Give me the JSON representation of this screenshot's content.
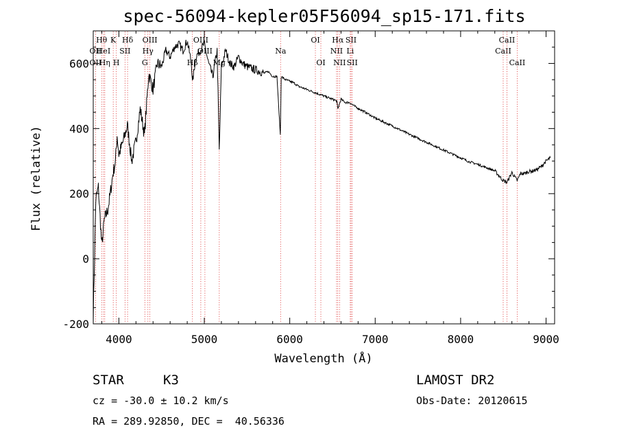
{
  "chart_data": {
    "type": "line",
    "title": "spec-56094-kepler05F56094_sp15-171.fits",
    "xlabel": "Wavelength (Å)",
    "ylabel": "Flux (relative)",
    "xlim": [
      3700,
      9100
    ],
    "ylim": [
      -200,
      700
    ],
    "xticks": [
      4000,
      5000,
      6000,
      7000,
      8000,
      9000
    ],
    "yticks": [
      -200,
      0,
      200,
      400,
      600
    ],
    "grid": false,
    "series": [
      {
        "x": [
          3700,
          3730,
          3760,
          3800,
          3830,
          3870,
          3900,
          3930,
          3960,
          3980,
          4000,
          4050,
          4100,
          4150,
          4200,
          4250,
          4300,
          4350,
          4400,
          4450,
          4500,
          4550,
          4600,
          4650,
          4700,
          4750,
          4800,
          4850,
          4861,
          4900,
          4950,
          5000,
          5050,
          5100,
          5150,
          5175,
          5200,
          5250,
          5300,
          5350,
          5400,
          5450,
          5500,
          5550,
          5600,
          5650,
          5700,
          5750,
          5800,
          5850,
          5890,
          5900,
          5950,
          6000,
          6050,
          6100,
          6150,
          6200,
          6250,
          6300,
          6350,
          6400,
          6450,
          6500,
          6550,
          6563,
          6600,
          6650,
          6700,
          6750,
          6800,
          6850,
          6900,
          6950,
          7000,
          7100,
          7200,
          7300,
          7400,
          7500,
          7600,
          7700,
          7800,
          7900,
          8000,
          8100,
          8200,
          8300,
          8400,
          8498,
          8542,
          8600,
          8662,
          8700,
          8750,
          8800,
          8850,
          8900,
          8950,
          9000,
          9050
        ],
        "y": [
          -180,
          180,
          220,
          40,
          120,
          150,
          200,
          260,
          300,
          380,
          320,
          360,
          410,
          300,
          360,
          460,
          380,
          570,
          520,
          600,
          590,
          640,
          620,
          650,
          660,
          640,
          670,
          600,
          540,
          620,
          640,
          660,
          600,
          560,
          640,
          330,
          590,
          640,
          600,
          590,
          620,
          600,
          590,
          585,
          580,
          575,
          570,
          575,
          560,
          560,
          380,
          560,
          550,
          545,
          540,
          530,
          525,
          520,
          515,
          510,
          505,
          500,
          495,
          490,
          485,
          460,
          490,
          480,
          480,
          470,
          462,
          455,
          448,
          440,
          432,
          420,
          408,
          395,
          382,
          370,
          358,
          346,
          334,
          322,
          310,
          298,
          290,
          280,
          270,
          240,
          235,
          265,
          240,
          262,
          262,
          268,
          270,
          275,
          285,
          300,
          310
        ]
      }
    ],
    "line_markers": [
      {
        "wavelength": 3727,
        "name": "OII",
        "row": 2
      },
      {
        "wavelength": 3727,
        "name": "OII",
        "row": 3
      },
      {
        "wavelength": 3798,
        "name": "Hθ",
        "row": 1
      },
      {
        "wavelength": 3820,
        "name": "HeI",
        "row": 2
      },
      {
        "wavelength": 3835,
        "name": "Hη",
        "row": 3
      },
      {
        "wavelength": 3934,
        "name": "K",
        "row": 1
      },
      {
        "wavelength": 3970,
        "name": "H",
        "row": 3
      },
      {
        "wavelength": 4072,
        "name": "SII",
        "row": 2
      },
      {
        "wavelength": 4102,
        "name": "Hδ",
        "row": 1
      },
      {
        "wavelength": 4304,
        "name": "G",
        "row": 3
      },
      {
        "wavelength": 4340,
        "name": "Hγ",
        "row": 2
      },
      {
        "wavelength": 4363,
        "name": "OIII",
        "row": 1
      },
      {
        "wavelength": 4861,
        "name": "Hβ",
        "row": 3
      },
      {
        "wavelength": 4959,
        "name": "OIII",
        "row": 1
      },
      {
        "wavelength": 5007,
        "name": "OIII",
        "row": 2
      },
      {
        "wavelength": 5175,
        "name": "Mg",
        "row": 3
      },
      {
        "wavelength": 5893,
        "name": "Na",
        "row": 2
      },
      {
        "wavelength": 6300,
        "name": "OI",
        "row": 1
      },
      {
        "wavelength": 6364,
        "name": "OI",
        "row": 3
      },
      {
        "wavelength": 6548,
        "name": "NII",
        "row": 2
      },
      {
        "wavelength": 6563,
        "name": "Hα",
        "row": 1
      },
      {
        "wavelength": 6583,
        "name": "NII",
        "row": 3
      },
      {
        "wavelength": 6708,
        "name": "Li",
        "row": 2
      },
      {
        "wavelength": 6717,
        "name": "SII",
        "row": 1
      },
      {
        "wavelength": 6731,
        "name": "SII",
        "row": 3
      },
      {
        "wavelength": 8498,
        "name": "CaII",
        "row": 2
      },
      {
        "wavelength": 8542,
        "name": "CaII",
        "row": 1
      },
      {
        "wavelength": 8662,
        "name": "CaII",
        "row": 3
      }
    ]
  },
  "info": {
    "object_type": "STAR",
    "subclass": "K3",
    "survey": "LAMOST DR2",
    "cz": "cz = -30.0 ± 10.2 km/s",
    "obs_date": "Obs-Date: 20120615",
    "coords": "RA = 289.92850, DEC =  40.56336"
  }
}
